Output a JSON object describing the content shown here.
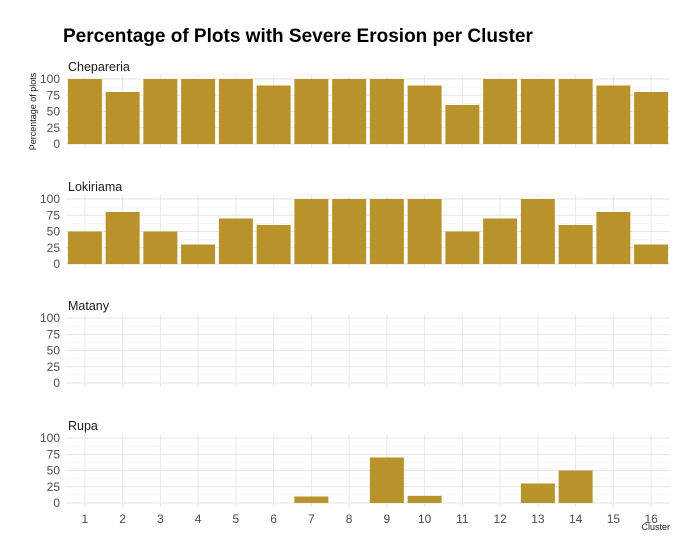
{
  "chart_data": {
    "type": "bar",
    "title": "Percentage of Plots with Severe Erosion per Cluster",
    "xlabel": "Cluster",
    "ylabel": "Percentage of plots",
    "ylim": [
      0,
      100
    ],
    "yticks": [
      "0",
      "25",
      "50",
      "75",
      "100"
    ],
    "categories": [
      "1",
      "2",
      "3",
      "4",
      "5",
      "6",
      "7",
      "8",
      "9",
      "10",
      "11",
      "12",
      "13",
      "14",
      "15",
      "16"
    ],
    "bar_color": "#b8922a",
    "panels": [
      {
        "name": "Chepareria",
        "values": [
          100,
          80,
          100,
          100,
          100,
          90,
          100,
          100,
          100,
          90,
          60,
          100,
          100,
          100,
          90,
          80
        ]
      },
      {
        "name": "Lokiriama",
        "values": [
          50,
          80,
          50,
          30,
          70,
          60,
          100,
          100,
          100,
          100,
          50,
          70,
          100,
          60,
          80,
          30
        ]
      },
      {
        "name": "Matany",
        "values": [
          null,
          null,
          null,
          null,
          null,
          null,
          null,
          null,
          null,
          null,
          null,
          null,
          null,
          null,
          null,
          null
        ]
      },
      {
        "name": "Rupa",
        "values": [
          null,
          null,
          null,
          null,
          null,
          null,
          10,
          null,
          70,
          11,
          null,
          null,
          30,
          50,
          null,
          null
        ]
      }
    ]
  }
}
